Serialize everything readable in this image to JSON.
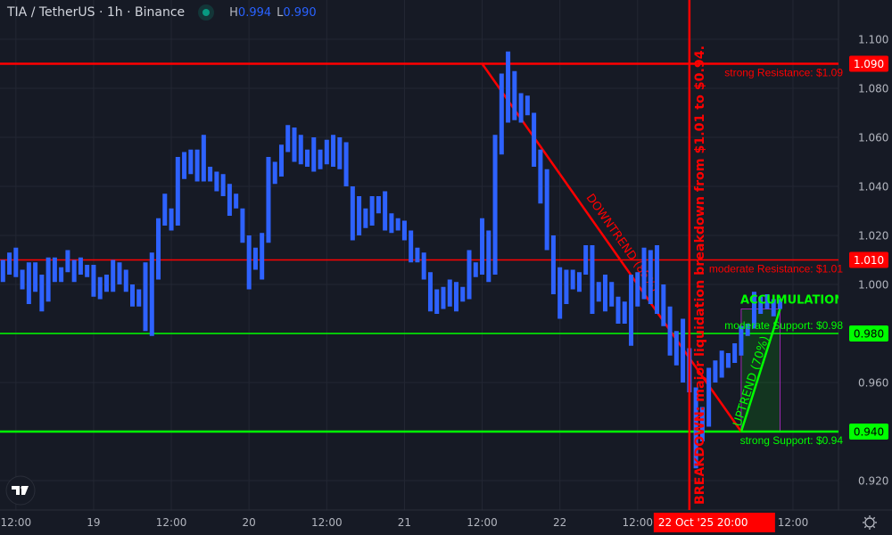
{
  "header": {
    "symbol_title": "TIA / TetherUS · 1h · Binance",
    "status_color": "#089981",
    "high_label": "H",
    "high_value": "0.994",
    "low_label": "L",
    "low_value": "0.990"
  },
  "colors": {
    "background": "#161a25",
    "grid": "#232733",
    "bars": "#2e62ff",
    "resistance": "#ff0000",
    "support": "#00ff00",
    "zone_border": "#9c27b0"
  },
  "chart_data": {
    "type": "bar",
    "style": "high-low range bars",
    "interval": "1h",
    "first_bar_time": "2025-10-18 10:00",
    "ylim": [
      0.91,
      1.105
    ],
    "y_ticks": [
      "1.100",
      "1.080",
      "1.060",
      "1.040",
      "1.020",
      "1.000",
      "0.980",
      "0.960",
      "0.940",
      "0.920"
    ],
    "x_ticks": [
      {
        "label": "12:00",
        "time": "2025-10-18 12:00"
      },
      {
        "label": "19",
        "time": "2025-10-19 00:00"
      },
      {
        "label": "12:00",
        "time": "2025-10-19 12:00"
      },
      {
        "label": "20",
        "time": "2025-10-20 00:00"
      },
      {
        "label": "12:00",
        "time": "2025-10-20 12:00"
      },
      {
        "label": "21",
        "time": "2025-10-21 00:00"
      },
      {
        "label": "12:00",
        "time": "2025-10-21 12:00"
      },
      {
        "label": "22",
        "time": "2025-10-22 00:00"
      },
      {
        "label": "12:00",
        "time": "2025-10-22 12:00"
      },
      {
        "label": "12:00",
        "time": "2025-10-23 12:00"
      }
    ],
    "crosshair_time_label": "22 Oct '25   20:00",
    "bars_high_low": [
      [
        1.01,
        1.001
      ],
      [
        1.013,
        1.004
      ],
      [
        1.015,
        1.003
      ],
      [
        1.006,
        0.998
      ],
      [
        1.009,
        0.992
      ],
      [
        1.009,
        0.997
      ],
      [
        1.004,
        0.989
      ],
      [
        1.011,
        0.993
      ],
      [
        1.011,
        1.001
      ],
      [
        1.007,
        1.001
      ],
      [
        1.014,
        1.005
      ],
      [
        1.01,
        1.001
      ],
      [
        1.011,
        1.004
      ],
      [
        1.008,
        1.003
      ],
      [
        1.008,
        0.995
      ],
      [
        1.003,
        0.994
      ],
      [
        1.004,
        0.997
      ],
      [
        1.01,
        0.997
      ],
      [
        1.009,
        1.0
      ],
      [
        1.006,
        0.997
      ],
      [
        1.0,
        0.991
      ],
      [
        0.998,
        0.991
      ],
      [
        1.009,
        0.981
      ],
      [
        1.013,
        0.979
      ],
      [
        1.027,
        1.002
      ],
      [
        1.037,
        1.024
      ],
      [
        1.031,
        1.022
      ],
      [
        1.052,
        1.024
      ],
      [
        1.054,
        1.043
      ],
      [
        1.055,
        1.045
      ],
      [
        1.055,
        1.042
      ],
      [
        1.061,
        1.042
      ],
      [
        1.048,
        1.042
      ],
      [
        1.046,
        1.038
      ],
      [
        1.045,
        1.036
      ],
      [
        1.041,
        1.028
      ],
      [
        1.037,
        1.031
      ],
      [
        1.031,
        1.017
      ],
      [
        1.02,
        0.998
      ],
      [
        1.015,
        1.006
      ],
      [
        1.021,
        1.002
      ],
      [
        1.052,
        1.017
      ],
      [
        1.05,
        1.041
      ],
      [
        1.057,
        1.044
      ],
      [
        1.065,
        1.054
      ],
      [
        1.064,
        1.05
      ],
      [
        1.061,
        1.049
      ],
      [
        1.055,
        1.048
      ],
      [
        1.06,
        1.046
      ],
      [
        1.055,
        1.047
      ],
      [
        1.059,
        1.049
      ],
      [
        1.061,
        1.048
      ],
      [
        1.06,
        1.047
      ],
      [
        1.058,
        1.04
      ],
      [
        1.04,
        1.018
      ],
      [
        1.036,
        1.02
      ],
      [
        1.031,
        1.023
      ],
      [
        1.036,
        1.024
      ],
      [
        1.036,
        1.029
      ],
      [
        1.038,
        1.022
      ],
      [
        1.029,
        1.021
      ],
      [
        1.027,
        1.022
      ],
      [
        1.026,
        1.018
      ],
      [
        1.022,
        1.009
      ],
      [
        1.015,
        1.009
      ],
      [
        1.013,
        1.002
      ],
      [
        1.005,
        0.989
      ],
      [
        0.998,
        0.988
      ],
      [
        0.999,
        0.99
      ],
      [
        1.002,
        0.991
      ],
      [
        1.001,
        0.989
      ],
      [
        0.999,
        0.993
      ],
      [
        1.014,
        0.994
      ],
      [
        1.009,
        1.003
      ],
      [
        1.027,
        1.004
      ],
      [
        1.022,
        1.001
      ],
      [
        1.061,
        1.004
      ],
      [
        1.086,
        1.053
      ],
      [
        1.095,
        1.066
      ],
      [
        1.087,
        1.067
      ],
      [
        1.078,
        1.066
      ],
      [
        1.077,
        1.069
      ],
      [
        1.07,
        1.048
      ],
      [
        1.055,
        1.033
      ],
      [
        1.047,
        1.014
      ],
      [
        1.02,
        0.996
      ],
      [
        1.007,
        0.986
      ],
      [
        1.006,
        0.992
      ],
      [
        1.006,
        0.998
      ],
      [
        1.005,
        0.997
      ],
      [
        1.016,
        1.004
      ],
      [
        1.016,
        0.988
      ],
      [
        1.001,
        0.993
      ],
      [
        1.004,
        0.989
      ],
      [
        1.001,
        0.991
      ],
      [
        0.995,
        0.984
      ],
      [
        0.993,
        0.984
      ],
      [
        1.004,
        0.975
      ],
      [
        1.005,
        0.991
      ],
      [
        1.015,
        0.994
      ],
      [
        1.014,
        0.992
      ],
      [
        1.016,
        0.988
      ],
      [
        1.0,
        0.983
      ],
      [
        0.991,
        0.971
      ],
      [
        0.981,
        0.967
      ],
      [
        0.986,
        0.96
      ],
      [
        0.974,
        0.956
      ],
      [
        0.958,
        0.925
      ],
      [
        0.95,
        0.936
      ],
      [
        0.966,
        0.942
      ],
      [
        0.969,
        0.96
      ],
      [
        0.973,
        0.962
      ],
      [
        0.972,
        0.966
      ],
      [
        0.976,
        0.968
      ],
      [
        0.983,
        0.971
      ],
      [
        0.984,
        0.979
      ],
      [
        0.997,
        0.982
      ],
      [
        0.995,
        0.988
      ],
      [
        0.996,
        0.99
      ],
      [
        0.994,
        0.987
      ],
      [
        0.994,
        0.99
      ]
    ],
    "levels": [
      {
        "price": 1.09,
        "price_label": "1.090",
        "text": "strong Resistance: $1.09",
        "kind": "resistance",
        "weight": "strong"
      },
      {
        "price": 1.01,
        "price_label": "1.010",
        "text": "moderate Resistance: $1.01",
        "kind": "resistance",
        "weight": "moderate"
      },
      {
        "price": 0.98,
        "price_label": "0.980",
        "text": "moderate Support: $0.98",
        "kind": "support",
        "weight": "moderate"
      },
      {
        "price": 0.94,
        "price_label": "0.940",
        "text": "strong Support: $0.94",
        "kind": "support",
        "weight": "strong"
      }
    ],
    "annotations": {
      "breakdown": {
        "time": "2025-10-22 20:00",
        "text": "BREAKDOWN: major liquidation breakdown from $1.01 to $0.94."
      },
      "downtrend": {
        "from": {
          "time": "2025-10-21 12:00",
          "price": 1.09
        },
        "to": {
          "time": "2025-10-23 04:00",
          "price": 0.94
        },
        "text": "DOWNTREND (85%)"
      },
      "uptrend": {
        "from": {
          "time": "2025-10-23 04:00",
          "price": 0.94
        },
        "to": {
          "time": "2025-10-23 10:00",
          "price": 0.99
        },
        "text": "UPTREND (70%)"
      },
      "accumulation_zone": {
        "from_time": "2025-10-23 04:00",
        "to_time": "2025-10-23 10:00",
        "low": 0.94,
        "high": 0.99,
        "text": "ACCUMULATION ZONE"
      }
    }
  },
  "footer": {
    "logo_text": "TV",
    "settings_icon": "gear-icon"
  }
}
